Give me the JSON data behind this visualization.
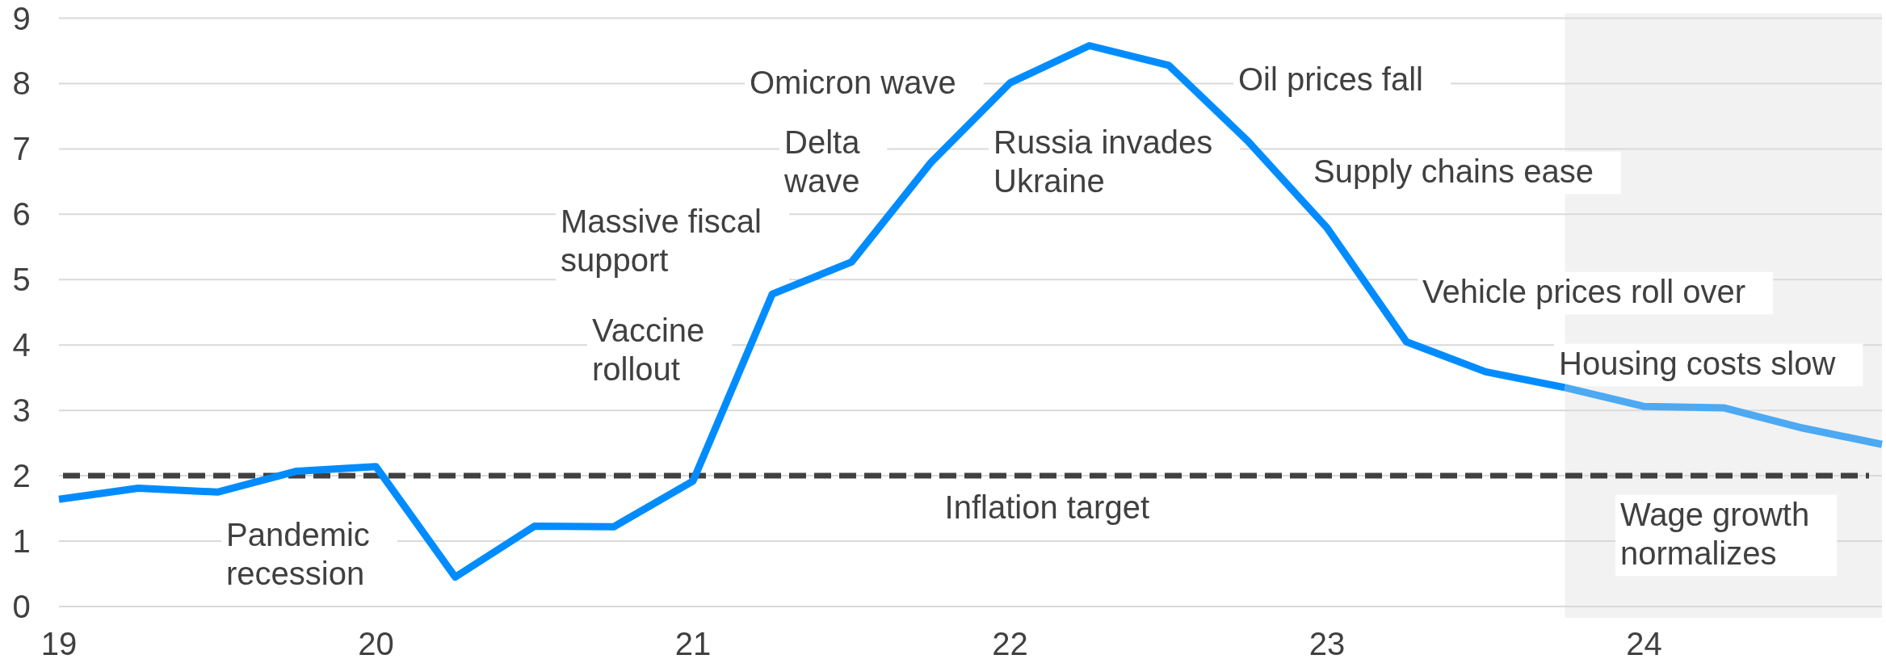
{
  "chart_data": {
    "type": "line",
    "xlim": [
      19,
      24.75
    ],
    "xticks": [
      19,
      20,
      21,
      22,
      23,
      24
    ],
    "ylim": [
      0,
      9
    ],
    "yticks": [
      0,
      1,
      2,
      3,
      4,
      5,
      6,
      7,
      8,
      9
    ],
    "grid": "y",
    "series": [
      {
        "color": "#008cff",
        "x": [
          19,
          19.25,
          19.5,
          19.75,
          20,
          20.25,
          20.5,
          20.75,
          21,
          21.25,
          21.5,
          21.75,
          22,
          22.25,
          22.5,
          22.75,
          23,
          23.25,
          23.5,
          23.75
        ],
        "values": [
          1.64,
          1.81,
          1.75,
          2.07,
          2.14,
          0.45,
          1.23,
          1.22,
          1.92,
          4.78,
          5.27,
          6.79,
          8.01,
          8.58,
          8.28,
          7.12,
          5.79,
          4.05,
          3.59,
          3.35
        ]
      },
      {
        "color": "#4da9f2",
        "x": [
          23.75,
          24,
          24.25,
          24.5,
          24.75
        ],
        "values": [
          3.35,
          3.06,
          3.04,
          2.73,
          2.48
        ]
      }
    ],
    "ref_lines": [
      {
        "axis": "y",
        "value": 2,
        "label": "Inflation target",
        "color": "#404040",
        "line_style": "dashed"
      }
    ],
    "bands": [
      {
        "axis": "x",
        "from": 23.75,
        "to": 24.75,
        "color": "#f2f2f2"
      }
    ],
    "annotations": [
      "Pandemic recession",
      "Vaccine rollout",
      "Massive fiscal support",
      "Delta wave",
      "Omicron wave",
      "Russia invades Ukraine",
      "Oil prices fall",
      "Supply chains ease",
      "Vehicle prices roll over",
      "Housing costs slow",
      "Wage growth normalizes"
    ]
  }
}
